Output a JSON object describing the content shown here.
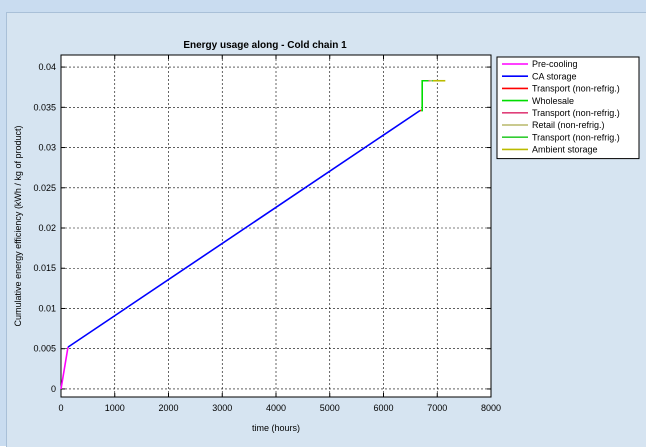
{
  "chart_data": {
    "type": "line",
    "title": "Energy usage along - Cold chain 1",
    "xlabel": "time (hours)",
    "ylabel": "Cumulative energy efficiency (kWh / kg of product)",
    "xlim": [
      0,
      8000
    ],
    "ylim": [
      -0.001,
      0.0415
    ],
    "xticks": [
      0,
      1000,
      2000,
      3000,
      4000,
      5000,
      6000,
      7000,
      8000
    ],
    "xtick_labels": [
      "0",
      "1000",
      "2000",
      "3000",
      "4000",
      "5000",
      "6000",
      "7000",
      "8000"
    ],
    "yticks": [
      0,
      0.005,
      0.01,
      0.015,
      0.02,
      0.025,
      0.03,
      0.035,
      0.04
    ],
    "ytick_labels": [
      "0",
      "0.005",
      "0.01",
      "0.015",
      "0.02",
      "0.025",
      "0.03",
      "0.035",
      "0.04"
    ],
    "grid": true,
    "legend_position": "right",
    "series": [
      {
        "name": "Pre-cooling",
        "color": "#ff00ff",
        "x": [
          0,
          130
        ],
        "y": [
          0,
          0.0052
        ]
      },
      {
        "name": "CA storage",
        "color": "#0000ff",
        "x": [
          130,
          6680
        ],
        "y": [
          0.0052,
          0.0346
        ]
      },
      {
        "name": "Transport (non-refrig.)",
        "color": "#ff0000",
        "x": [
          6680,
          6700
        ],
        "y": [
          0.0346,
          0.0346
        ]
      },
      {
        "name": "Wholesale",
        "color": "#00dd00",
        "x": [
          6700,
          6720,
          6720,
          6840
        ],
        "y": [
          0.0346,
          0.0346,
          0.0383,
          0.0383
        ]
      },
      {
        "name": "Transport (non-refrig.)",
        "color": "#e0407a",
        "x": [
          6840,
          6860
        ],
        "y": [
          0.0383,
          0.0383
        ]
      },
      {
        "name": "Retail (non-refrig.)",
        "color": "#b8b86a",
        "x": [
          6860,
          6900
        ],
        "y": [
          0.0383,
          0.0383
        ]
      },
      {
        "name": "Transport (non-refrig.)",
        "color": "#33cc33",
        "x": [
          6900,
          6920
        ],
        "y": [
          0.0383,
          0.0383
        ]
      },
      {
        "name": "Ambient storage",
        "color": "#bbbb00",
        "x": [
          6920,
          7150
        ],
        "y": [
          0.0383,
          0.0383
        ]
      }
    ]
  }
}
